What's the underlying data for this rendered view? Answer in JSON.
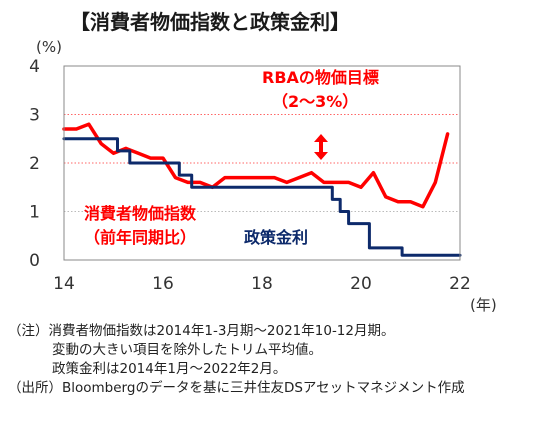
{
  "title": "【消費者物価指数と政策金利】",
  "chart_data": {
    "type": "line",
    "ylabel_unit": "(%)",
    "xlabel_unit": "(年)",
    "ylim": [
      0,
      4
    ],
    "xlim": [
      2014,
      2022
    ],
    "yticks": [
      "0",
      "1",
      "2",
      "3",
      "4"
    ],
    "xticks": [
      "14",
      "16",
      "18",
      "20",
      "22"
    ],
    "xtick_values": [
      2014,
      2016,
      2018,
      2020,
      2022
    ],
    "grid": "y-dotted",
    "target_band": [
      2,
      3
    ],
    "annotations": {
      "target_line1": "RBAの物価目標",
      "target_line2": "（2～3%）",
      "cpi_line1": "消費者物価指数",
      "cpi_line2": "（前年同期比）",
      "rate": "政策金利"
    },
    "series": [
      {
        "name": "消費者物価指数（前年同期比）",
        "color": "#ff0000",
        "x": [
          2014.0,
          2014.25,
          2014.5,
          2014.75,
          2015.0,
          2015.25,
          2015.5,
          2015.75,
          2016.0,
          2016.25,
          2016.5,
          2016.75,
          2017.0,
          2017.25,
          2017.5,
          2017.75,
          2018.0,
          2018.25,
          2018.5,
          2018.75,
          2019.0,
          2019.25,
          2019.5,
          2019.75,
          2020.0,
          2020.25,
          2020.5,
          2020.75,
          2021.0,
          2021.25,
          2021.5,
          2021.75
        ],
        "y": [
          2.7,
          2.7,
          2.8,
          2.4,
          2.2,
          2.3,
          2.2,
          2.1,
          2.1,
          1.7,
          1.6,
          1.6,
          1.5,
          1.7,
          1.7,
          1.7,
          1.7,
          1.7,
          1.6,
          1.7,
          1.8,
          1.6,
          1.6,
          1.6,
          1.5,
          1.8,
          1.3,
          1.2,
          1.2,
          1.1,
          1.6,
          2.6
        ]
      },
      {
        "name": "政策金利",
        "color": "#0d2a6b",
        "x": [
          2014.0,
          2015.08,
          2015.08,
          2015.33,
          2015.33,
          2016.33,
          2016.33,
          2016.58,
          2016.58,
          2019.42,
          2019.42,
          2019.58,
          2019.58,
          2019.75,
          2019.75,
          2020.17,
          2020.17,
          2020.83,
          2020.83,
          2022.0
        ],
        "y": [
          2.5,
          2.5,
          2.25,
          2.25,
          2.0,
          2.0,
          1.75,
          1.75,
          1.5,
          1.5,
          1.25,
          1.25,
          1.0,
          1.0,
          0.75,
          0.75,
          0.25,
          0.25,
          0.1,
          0.1
        ]
      }
    ]
  },
  "notes": [
    "（注）消費者物価指数は2014年1-3月期～2021年10-12月期。",
    "変動の大きい項目を除外したトリム平均値。",
    "政策金利は2014年1月～2022年2月。",
    "（出所）Bloombergのデータを基に三井住友DSアセットマネジメント作成"
  ]
}
